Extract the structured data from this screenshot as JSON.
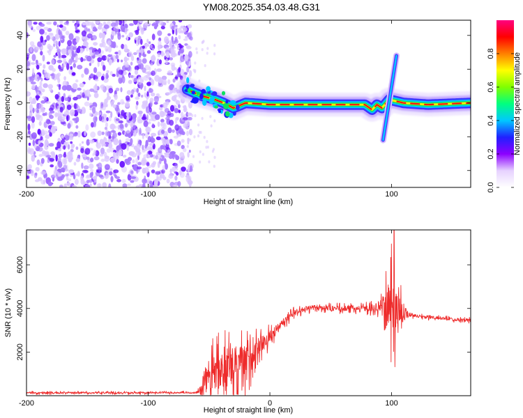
{
  "figure_title": "YM08.2025.354.03.48.G31",
  "colors": {
    "speckle_light": "#dcc8ff",
    "speckle_mid": "#a678ff",
    "speckle_dark": "#6a14ff",
    "snr_line": "#ee2b2b",
    "axis": "#000000"
  },
  "chart_data": [
    {
      "type": "heatmap",
      "title": "",
      "xlabel": "Height of straight line (km)",
      "ylabel": "Frequency (Hz)",
      "xlim": [
        -200,
        165
      ],
      "ylim": [
        -50,
        49
      ],
      "xticks": [
        -200,
        -100,
        0,
        100
      ],
      "yticks": [
        -40,
        -20,
        0,
        20,
        40
      ],
      "colorbar": {
        "label": "Normalized spectral amplitude",
        "range": [
          0,
          1
        ],
        "ticks": [
          0.0,
          0.2,
          0.4,
          0.6,
          0.8
        ],
        "tick_labels": [
          "0.0",
          "0.2",
          "0.4",
          "0.6",
          "0.8"
        ],
        "colormap": [
          "#ffffff",
          "#e6d2ff",
          "#8c00ff",
          "#2020ff",
          "#00c8ff",
          "#00ff80",
          "#80ff00",
          "#ffff00",
          "#ff8000",
          "#ff0000",
          "#ff0080"
        ]
      },
      "noise_region_x": [
        -200,
        -68
      ],
      "ridge": {
        "x": [
          -68,
          -62,
          -55,
          -45,
          -38,
          -30,
          -20,
          0,
          50,
          78,
          84,
          88,
          92,
          98,
          110,
          130,
          165
        ],
        "y": [
          8,
          6,
          4,
          2,
          0,
          -3,
          0,
          -1,
          -1,
          -1,
          -4,
          -1,
          -3,
          2,
          0,
          -1,
          0
        ]
      },
      "spike": {
        "x": [
          93,
          104
        ],
        "y": [
          -22,
          28
        ]
      }
    },
    {
      "type": "line",
      "title": "",
      "xlabel": "Height of straight line (km)",
      "ylabel": "SNR (10 * v/v)",
      "xlim": [
        -200,
        165
      ],
      "ylim": [
        0,
        7600
      ],
      "xticks": [
        -200,
        -100,
        0,
        100
      ],
      "yticks": [
        2000,
        4000,
        6000
      ],
      "series": [
        {
          "name": "SNR",
          "envelope_x": [
            -200,
            -150,
            -100,
            -60,
            -56,
            -50,
            -40,
            -30,
            -20,
            -10,
            0,
            10,
            20,
            30,
            40,
            50,
            60,
            70,
            80,
            90,
            95,
            100,
            105,
            110,
            115,
            120,
            140,
            165
          ],
          "baseline_y": [
            130,
            130,
            130,
            140,
            500,
            900,
            1200,
            1350,
            1500,
            2200,
            2700,
            3300,
            3800,
            4000,
            4050,
            4000,
            4000,
            4000,
            4000,
            4050,
            4100,
            4050,
            3900,
            3800,
            3750,
            3650,
            3550,
            3450
          ],
          "noise_amp": [
            80,
            80,
            80,
            80,
            1600,
            1600,
            1800,
            2100,
            1800,
            900,
            600,
            400,
            300,
            250,
            250,
            250,
            250,
            250,
            300,
            500,
            1500,
            3000,
            2500,
            700,
            200,
            150,
            150,
            150
          ]
        }
      ],
      "peak": {
        "x": 102,
        "y": 7600
      }
    }
  ]
}
